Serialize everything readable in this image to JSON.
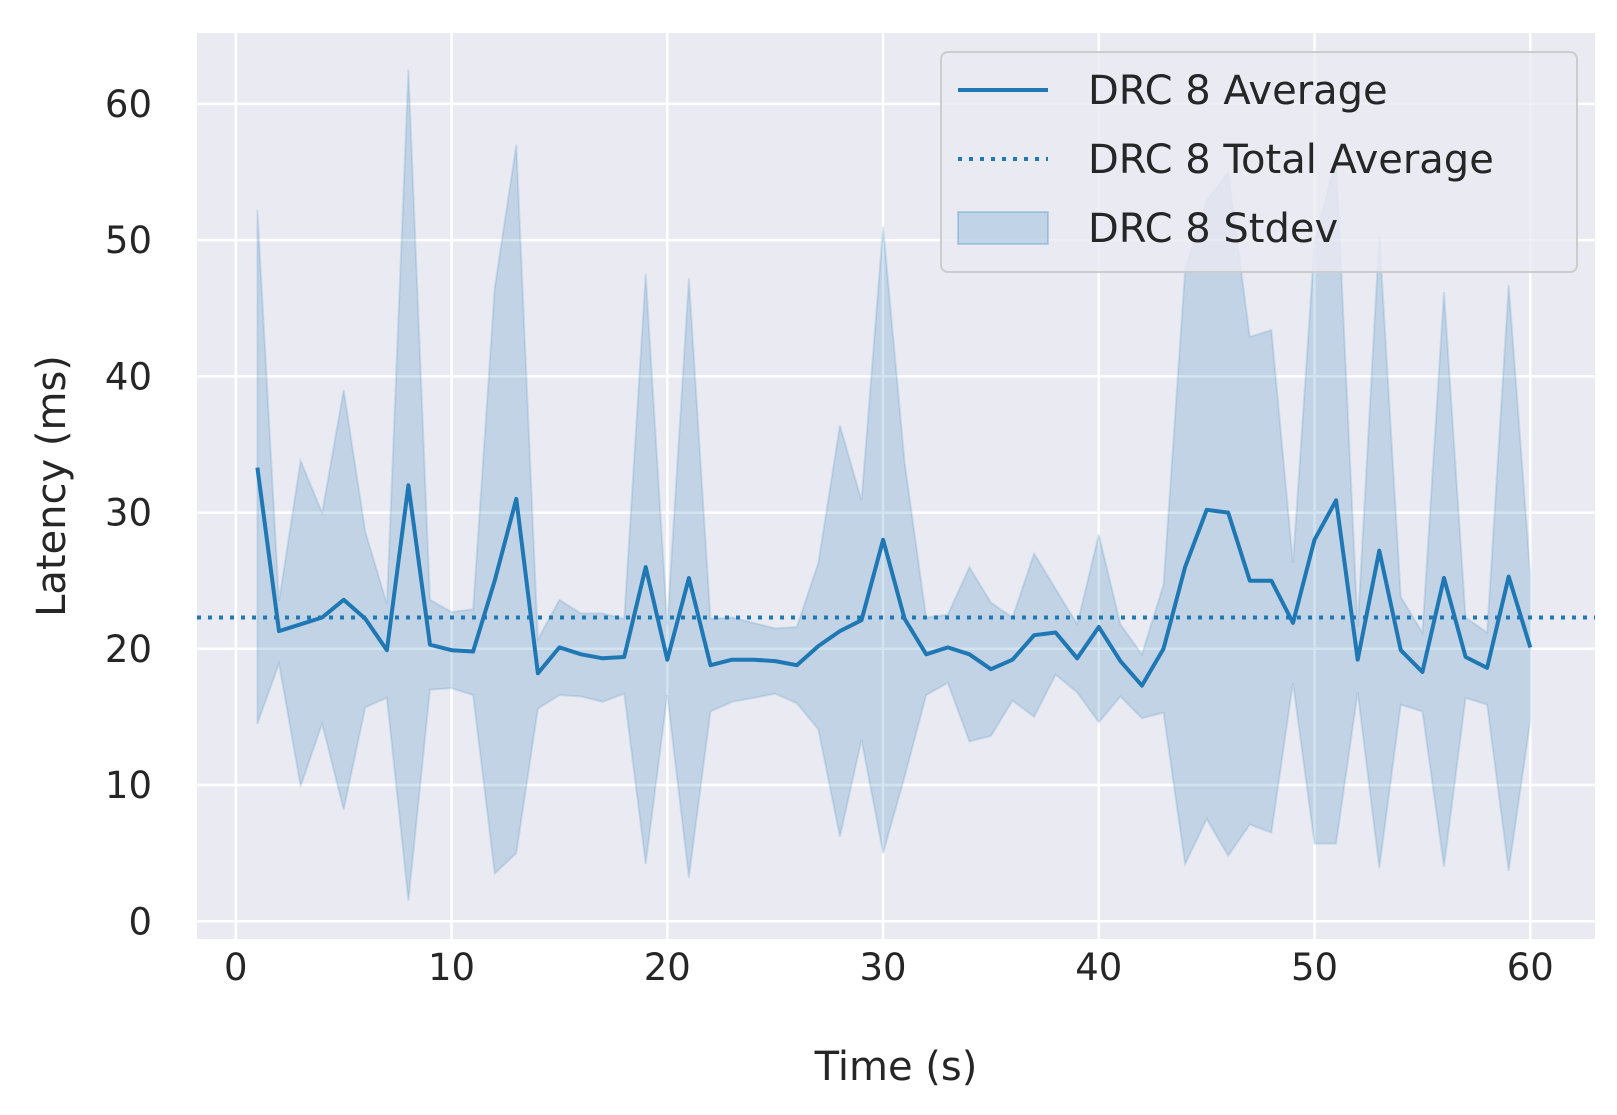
{
  "chart_data": {
    "type": "line",
    "xlabel": "Time (s)",
    "ylabel": "Latency (ms)",
    "xlim": [
      -1.8,
      63
    ],
    "ylim": [
      -1.3,
      65.2
    ],
    "x_ticks": [
      0,
      10,
      20,
      30,
      40,
      50,
      60
    ],
    "y_ticks": [
      0,
      10,
      20,
      30,
      40,
      50,
      60
    ],
    "grid": true,
    "legend_position": "top-right",
    "colors": {
      "line": "#1f77b4",
      "band": "#1f77b4",
      "background": "#eaeaf2",
      "grid": "#ffffff"
    },
    "x": [
      1,
      2,
      3,
      4,
      5,
      6,
      7,
      8,
      9,
      10,
      11,
      12,
      13,
      14,
      15,
      16,
      17,
      18,
      19,
      20,
      21,
      22,
      23,
      24,
      25,
      26,
      27,
      28,
      29,
      30,
      31,
      32,
      33,
      34,
      35,
      36,
      37,
      38,
      39,
      40,
      41,
      42,
      43,
      44,
      45,
      46,
      47,
      48,
      49,
      50,
      51,
      52,
      53,
      54,
      55,
      56,
      57,
      58,
      59,
      60
    ],
    "series": [
      {
        "name": "DRC 8 Average",
        "style": "solid",
        "values": [
          33.3,
          21.3,
          21.8,
          22.3,
          23.6,
          22.2,
          19.9,
          32.0,
          20.3,
          19.9,
          19.8,
          25.0,
          31.0,
          18.2,
          20.1,
          19.6,
          19.3,
          19.4,
          26.0,
          19.2,
          25.2,
          18.8,
          19.2,
          19.2,
          19.1,
          18.8,
          20.2,
          21.3,
          22.1,
          28.0,
          22.2,
          19.6,
          20.1,
          19.6,
          18.5,
          19.2,
          21.0,
          21.2,
          19.3,
          21.6,
          19.1,
          17.3,
          20.0,
          26.0,
          30.2,
          30.0,
          25.0,
          25.0,
          21.9,
          28.0,
          30.9,
          19.2,
          27.2,
          19.9,
          18.3,
          25.2,
          19.4,
          18.6,
          25.3,
          20.1
        ]
      },
      {
        "name": "DRC 8 Total Average",
        "style": "dotted",
        "value": 22.3
      },
      {
        "name": "DRC 8 Stdev",
        "style": "band",
        "upper": [
          52.2,
          23.5,
          33.8,
          30.0,
          39.0,
          28.6,
          23.3,
          62.5,
          23.6,
          22.7,
          22.9,
          46.5,
          57.0,
          20.7,
          23.6,
          22.6,
          22.6,
          22.2,
          47.5,
          21.8,
          47.2,
          22.2,
          22.3,
          21.9,
          21.5,
          21.6,
          26.3,
          36.4,
          30.9,
          51.0,
          33.7,
          22.3,
          22.5,
          26.0,
          23.4,
          22.3,
          27.0,
          24.4,
          21.8,
          28.4,
          21.8,
          19.6,
          24.7,
          47.8,
          52.9,
          55.0,
          42.9,
          43.4,
          26.3,
          49.8,
          56.0,
          21.6,
          50.4,
          23.8,
          21.2,
          46.2,
          22.3,
          21.2,
          46.7,
          25.5
        ],
        "lower": [
          14.5,
          18.9,
          9.9,
          14.5,
          8.2,
          15.7,
          16.4,
          1.5,
          17.0,
          17.1,
          16.6,
          3.5,
          5.0,
          15.6,
          16.6,
          16.5,
          16.1,
          16.7,
          4.2,
          16.6,
          3.2,
          15.4,
          16.1,
          16.4,
          16.7,
          16.0,
          14.1,
          6.2,
          13.3,
          5.0,
          10.6,
          16.6,
          17.5,
          13.2,
          13.6,
          16.2,
          15.0,
          18.1,
          16.8,
          14.6,
          16.5,
          14.9,
          15.3,
          4.2,
          7.5,
          4.8,
          7.1,
          6.5,
          17.5,
          5.7,
          5.7,
          16.8,
          3.9,
          15.9,
          15.4,
          4.0,
          16.4,
          15.9,
          3.7,
          14.7
        ]
      }
    ]
  }
}
